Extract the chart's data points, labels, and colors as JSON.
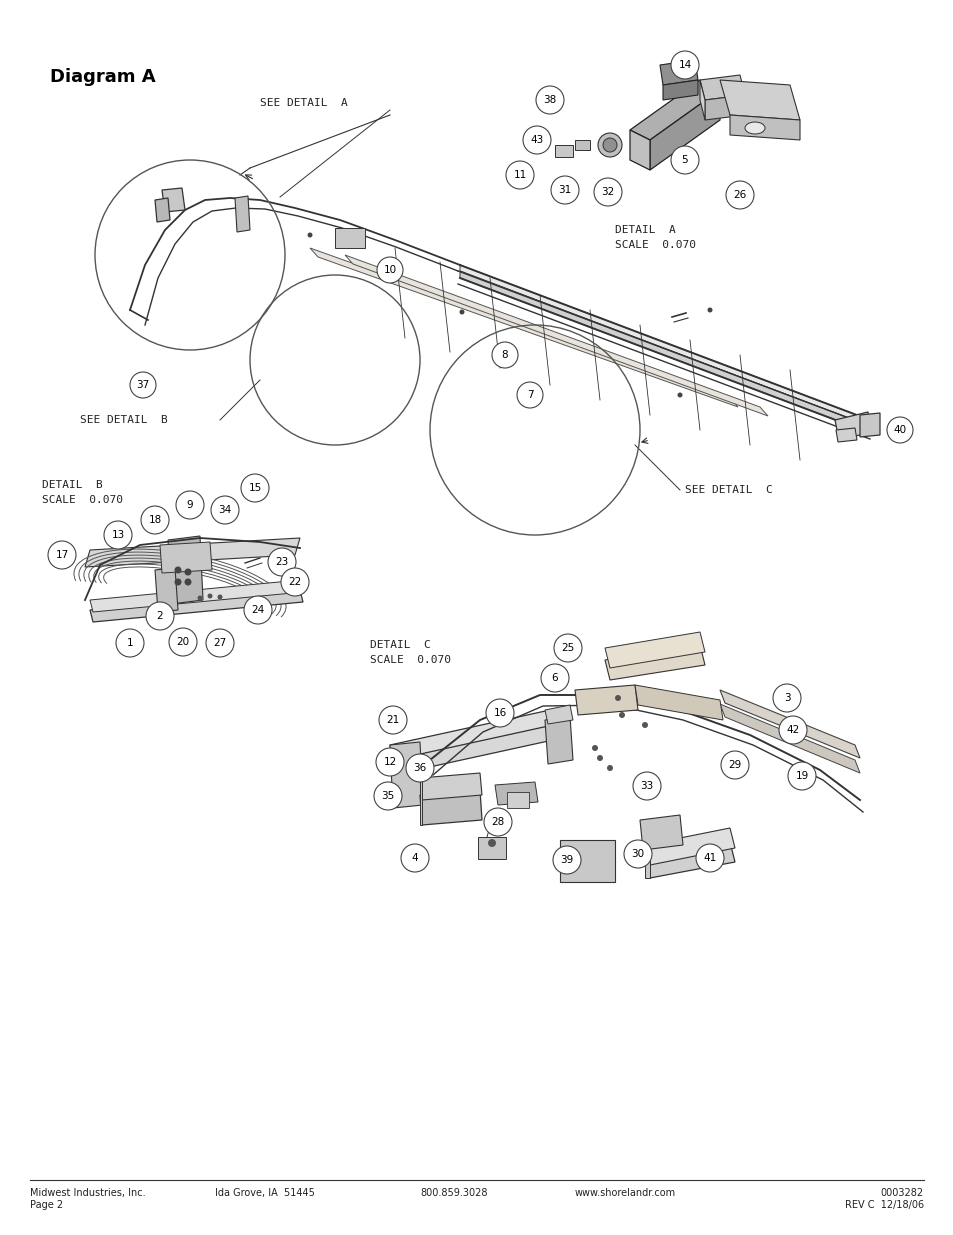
{
  "title": "Diagram A",
  "footer_left1": "Midwest Industries, Inc.",
  "footer_left2": "Page 2",
  "footer_center1": "Ida Grove, IA  51445",
  "footer_phone": "800.859.3028",
  "footer_web": "www.shorelandr.com",
  "footer_doc": "0003282",
  "footer_rev": "REV C  12/18/06",
  "bg_color": "#ffffff",
  "line_color": "#333333",
  "text_color": "#222222",
  "detail_a_label": "DETAIL  A\nSCALE  0.070",
  "detail_b_label": "DETAIL  B\nSCALE  0.070",
  "detail_c_label": "DETAIL  C\nSCALE  0.070",
  "see_detail_a": "SEE DETAIL  A",
  "see_detail_b": "SEE DETAIL  B",
  "see_detail_c": "SEE DETAIL  C",
  "fig_width": 9.54,
  "fig_height": 12.35,
  "dpi": 100
}
